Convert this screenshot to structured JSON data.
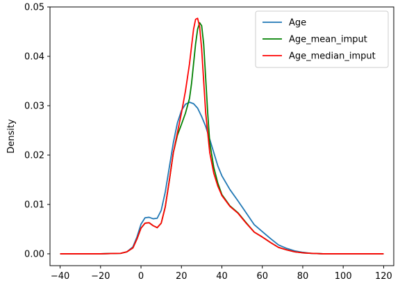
{
  "chart_data": {
    "type": "line",
    "title": "",
    "xlabel": "",
    "ylabel": "Density",
    "xlim": [
      -45,
      125
    ],
    "ylim": [
      -0.0024,
      0.05
    ],
    "xticks": [
      -40,
      -20,
      0,
      20,
      40,
      60,
      80,
      100,
      120
    ],
    "xtick_labels": [
      "−40",
      "−20",
      "0",
      "20",
      "40",
      "60",
      "80",
      "100",
      "120"
    ],
    "yticks": [
      0.0,
      0.01,
      0.02,
      0.03,
      0.04,
      0.05
    ],
    "ytick_labels": [
      "0.00",
      "0.01",
      "0.02",
      "0.03",
      "0.04",
      "0.05"
    ],
    "grid": false,
    "legend_position": "top-right",
    "series": [
      {
        "name": "Age",
        "color": "#1f77b4",
        "x": [
          -40,
          -20,
          -10,
          -7,
          -4,
          -2,
          0,
          2,
          4,
          6,
          8,
          10,
          12,
          14,
          16,
          18,
          20,
          22,
          24,
          26,
          28,
          30,
          32,
          34,
          36,
          38,
          40,
          44,
          48,
          52,
          56,
          60,
          64,
          68,
          72,
          76,
          80,
          84,
          90,
          100,
          120
        ],
        "y": [
          0,
          0,
          0.0001,
          0.0004,
          0.0014,
          0.0034,
          0.006,
          0.0073,
          0.0074,
          0.0071,
          0.0072,
          0.0088,
          0.0125,
          0.0175,
          0.0225,
          0.0265,
          0.029,
          0.0303,
          0.0307,
          0.0304,
          0.0295,
          0.0278,
          0.0258,
          0.0232,
          0.0205,
          0.0178,
          0.0158,
          0.013,
          0.0107,
          0.0083,
          0.0059,
          0.0045,
          0.0031,
          0.0018,
          0.0011,
          0.0006,
          0.0003,
          0.0001,
          0.0,
          0.0,
          0.0
        ]
      },
      {
        "name": "Age_mean_imput",
        "color": "#008000",
        "x": [
          -40,
          -20,
          -10,
          -7,
          -4,
          -2,
          0,
          2,
          4,
          6,
          8,
          10,
          12,
          14,
          16,
          18,
          20,
          22,
          24,
          25,
          26,
          27,
          28,
          29,
          30,
          31,
          32,
          33,
          34,
          36,
          38,
          40,
          44,
          48,
          52,
          56,
          60,
          64,
          68,
          72,
          76,
          80,
          84,
          90,
          100,
          120
        ],
        "y": [
          0,
          0,
          0.0001,
          0.0004,
          0.0012,
          0.003,
          0.0052,
          0.0062,
          0.0063,
          0.0057,
          0.0053,
          0.0062,
          0.0095,
          0.0148,
          0.0205,
          0.024,
          0.0262,
          0.0285,
          0.0315,
          0.0345,
          0.0385,
          0.0425,
          0.0455,
          0.0468,
          0.0462,
          0.0425,
          0.0355,
          0.0285,
          0.0225,
          0.0175,
          0.0143,
          0.012,
          0.0097,
          0.0083,
          0.0063,
          0.0044,
          0.0034,
          0.0023,
          0.0013,
          0.0008,
          0.0004,
          0.0002,
          0.0001,
          0.0,
          0.0,
          0.0
        ]
      },
      {
        "name": "Age_median_imput",
        "color": "#ff0000",
        "x": [
          -40,
          -20,
          -10,
          -7,
          -4,
          -2,
          0,
          2,
          4,
          6,
          8,
          10,
          12,
          14,
          16,
          18,
          20,
          22,
          24,
          25,
          26,
          27,
          28,
          29,
          30,
          31,
          32,
          34,
          36,
          38,
          40,
          44,
          48,
          52,
          56,
          60,
          64,
          68,
          72,
          76,
          80,
          84,
          90,
          100,
          120
        ],
        "y": [
          0,
          0,
          0.0001,
          0.0004,
          0.0012,
          0.003,
          0.0052,
          0.0062,
          0.0063,
          0.0057,
          0.0053,
          0.0062,
          0.0095,
          0.0148,
          0.0205,
          0.0245,
          0.0285,
          0.033,
          0.0385,
          0.042,
          0.0455,
          0.0475,
          0.0477,
          0.046,
          0.0415,
          0.035,
          0.0285,
          0.0205,
          0.0163,
          0.0137,
          0.0118,
          0.0096,
          0.0082,
          0.0062,
          0.0044,
          0.0034,
          0.0023,
          0.0013,
          0.0008,
          0.0004,
          0.0002,
          0.0001,
          0.0,
          0.0,
          0.0
        ]
      }
    ]
  }
}
